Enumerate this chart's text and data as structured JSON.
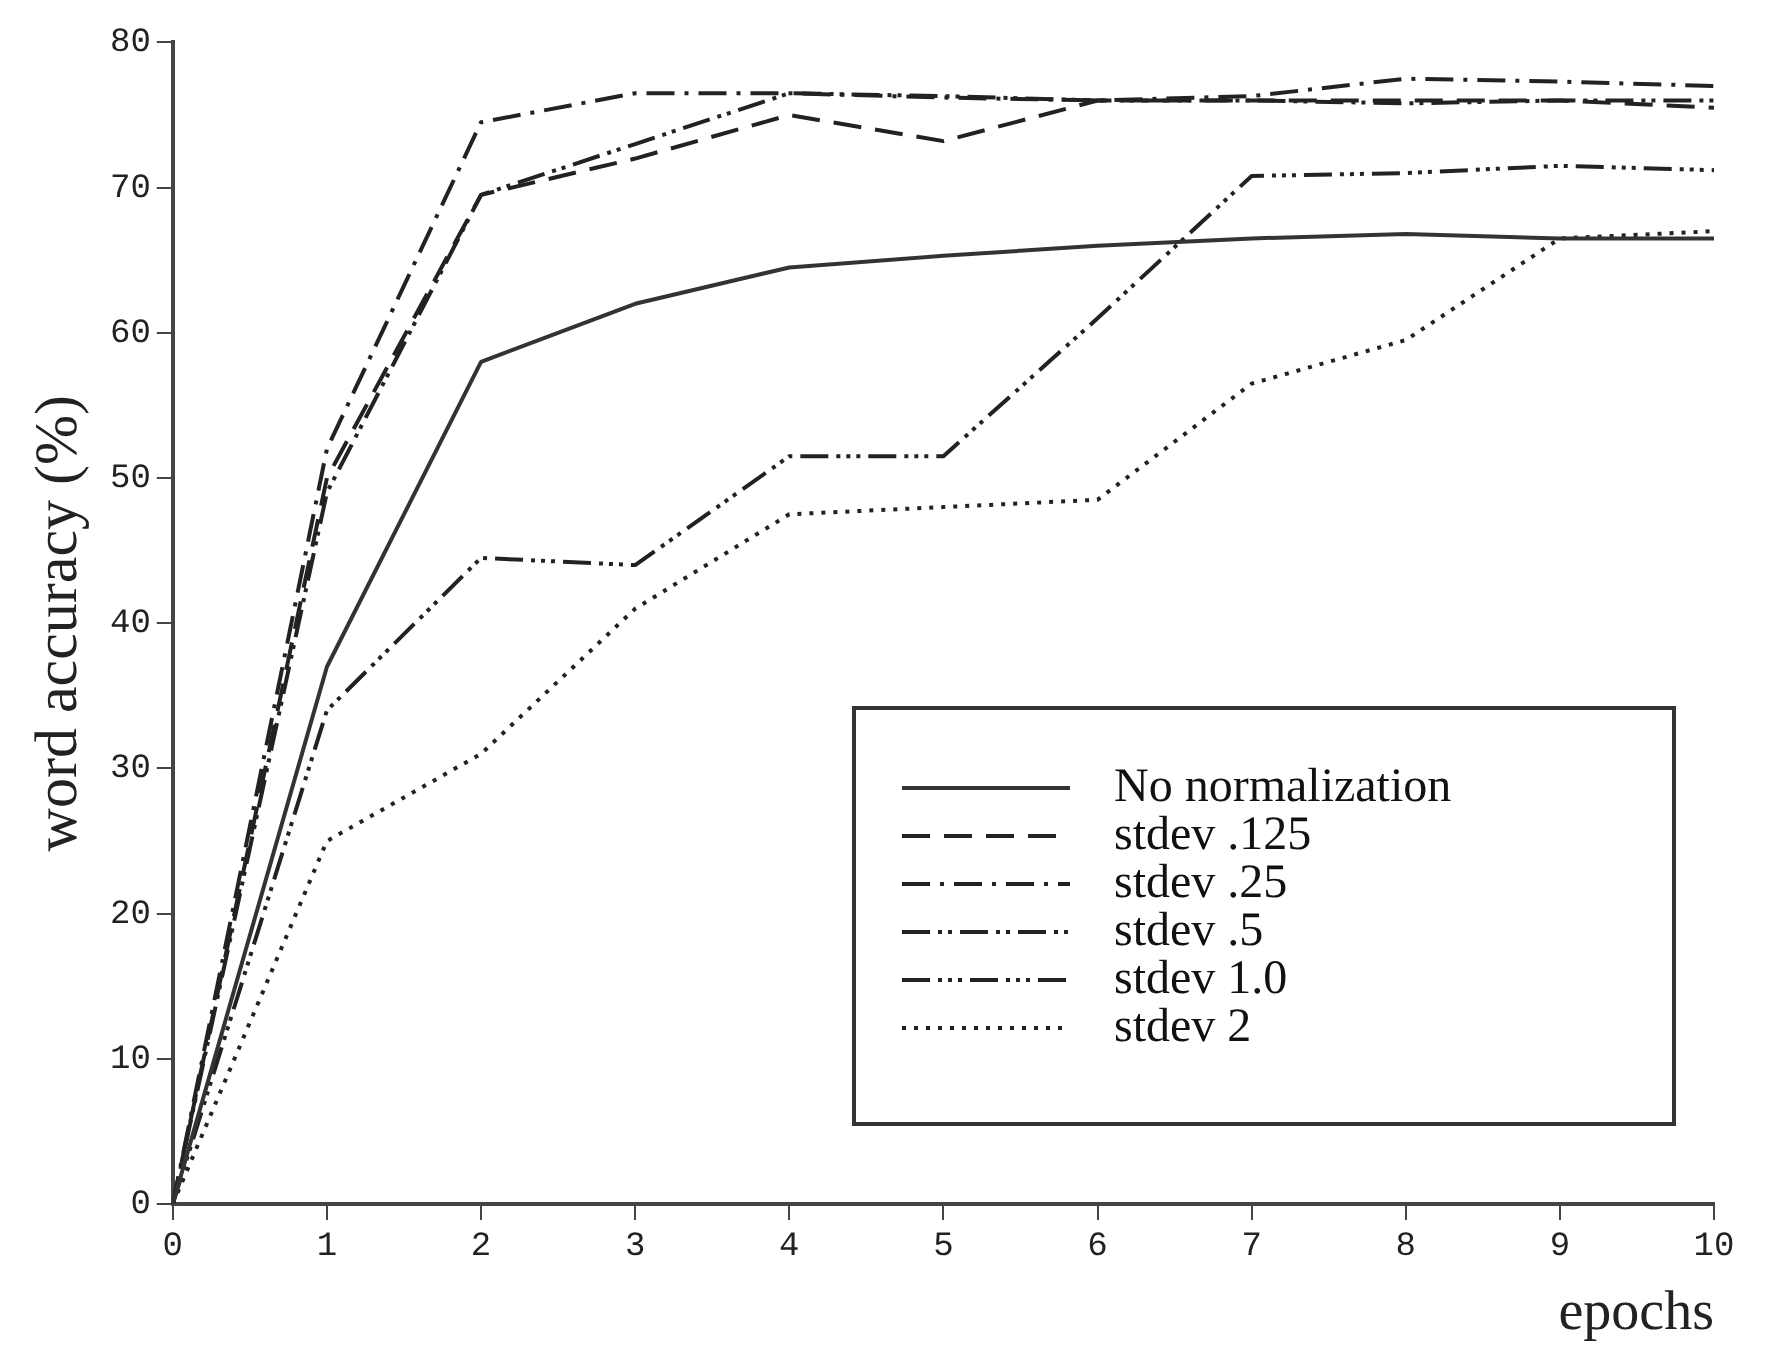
{
  "chart_data": {
    "type": "line",
    "xlabel": "epochs",
    "ylabel": "word accuracy (%)",
    "x": [
      0,
      1,
      2,
      3,
      4,
      5,
      6,
      7,
      8,
      9,
      10
    ],
    "xlim": [
      0,
      10
    ],
    "xticks": [
      0,
      1,
      2,
      3,
      4,
      5,
      6,
      7,
      8,
      9,
      10
    ],
    "ylim": [
      0,
      80
    ],
    "yticks": [
      0,
      10,
      20,
      30,
      40,
      50,
      60,
      70,
      80
    ],
    "grid": false,
    "legend": "bottom right",
    "marker": "none",
    "series": [
      {
        "name": "No normalization",
        "color": "#333333",
        "line_style": "solid",
        "values": [
          0,
          37,
          58,
          62,
          64.5,
          65.3,
          66,
          66.5,
          66.8,
          66.5,
          66.5
        ]
      },
      {
        "name": "stdev .125",
        "color": "#222222",
        "line_style": "dashed",
        "values": [
          0,
          50,
          69.5,
          72,
          75,
          73.2,
          76,
          76,
          76,
          76,
          75.5
        ]
      },
      {
        "name": "stdev .25",
        "color": "#222222",
        "line_style": "dashed",
        "values": [
          0,
          52,
          74.5,
          76.5,
          76.5,
          76.2,
          76,
          76.3,
          77.5,
          77.3,
          77
        ]
      },
      {
        "name": "stdev .5",
        "color": "#222222",
        "line_style": "dashed",
        "values": [
          0,
          49,
          69.5,
          73,
          76.5,
          76.3,
          76,
          76,
          75.8,
          76,
          76
        ]
      },
      {
        "name": "stdev 1.0",
        "color": "#222222",
        "line_style": "dashed",
        "values": [
          0,
          34,
          44.5,
          44,
          51.5,
          51.5,
          61,
          70.8,
          71,
          71.5,
          71.2
        ]
      },
      {
        "name": "stdev 2",
        "color": "#222222",
        "line_style": "dotted",
        "values": [
          0,
          25,
          31,
          41,
          47.5,
          48,
          48.5,
          56.5,
          59.5,
          66.5,
          67
        ]
      }
    ]
  }
}
